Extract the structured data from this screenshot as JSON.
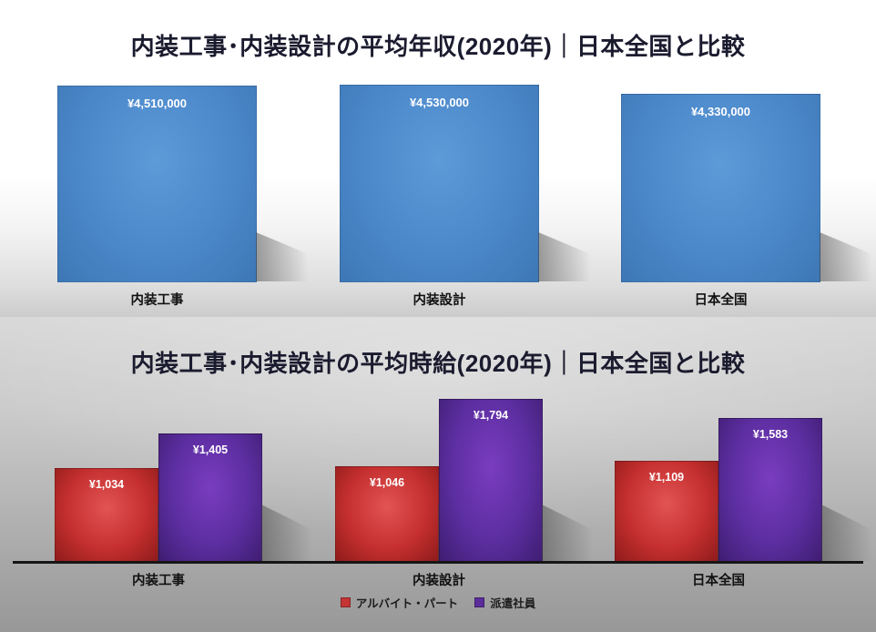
{
  "page": {
    "background_top": "#ffffff",
    "background_bottom_gradient": [
      "#d9d9d9",
      "#989898"
    ],
    "title_color": "#1b1b2f",
    "label_color": "#111111",
    "value_label_color": "#ffffff"
  },
  "chart_data": [
    {
      "type": "bar",
      "title": "内装工事･内装設計の平均年収(2020年)｜日本全国と比較",
      "categories": [
        "内装工事",
        "内装設計",
        "日本全国"
      ],
      "values": [
        4510000,
        4530000,
        4330000
      ],
      "value_labels": [
        "¥4,510,000",
        "¥4,530,000",
        "¥4,330,000"
      ],
      "ylim": [
        0,
        4700000
      ],
      "bar_color": "#4C8BCB",
      "grid": false,
      "legend": "none",
      "value_label_position": "inside-top",
      "effects": "3d-perspective-shadow"
    },
    {
      "type": "bar",
      "title": "内装工事･内装設計の平均時給(2020年)｜日本全国と比較",
      "categories": [
        "内装工事",
        "内装設計",
        "日本全国"
      ],
      "series": [
        {
          "name": "アルバイト・パート",
          "color": "#C43434",
          "values": [
            1034,
            1046,
            1109
          ],
          "value_labels": [
            "¥1,034",
            "¥1,046",
            "¥1,109"
          ]
        },
        {
          "name": "派遣社員",
          "color": "#5B2D9B",
          "values": [
            1405,
            1794,
            1583
          ],
          "value_labels": [
            "¥1,405",
            "¥1,794",
            "¥1,583"
          ]
        }
      ],
      "ylim": [
        0,
        2000
      ],
      "grid": false,
      "legend_position": "bottom",
      "value_label_position": "inside-top",
      "effects": "3d-perspective-shadow"
    }
  ]
}
